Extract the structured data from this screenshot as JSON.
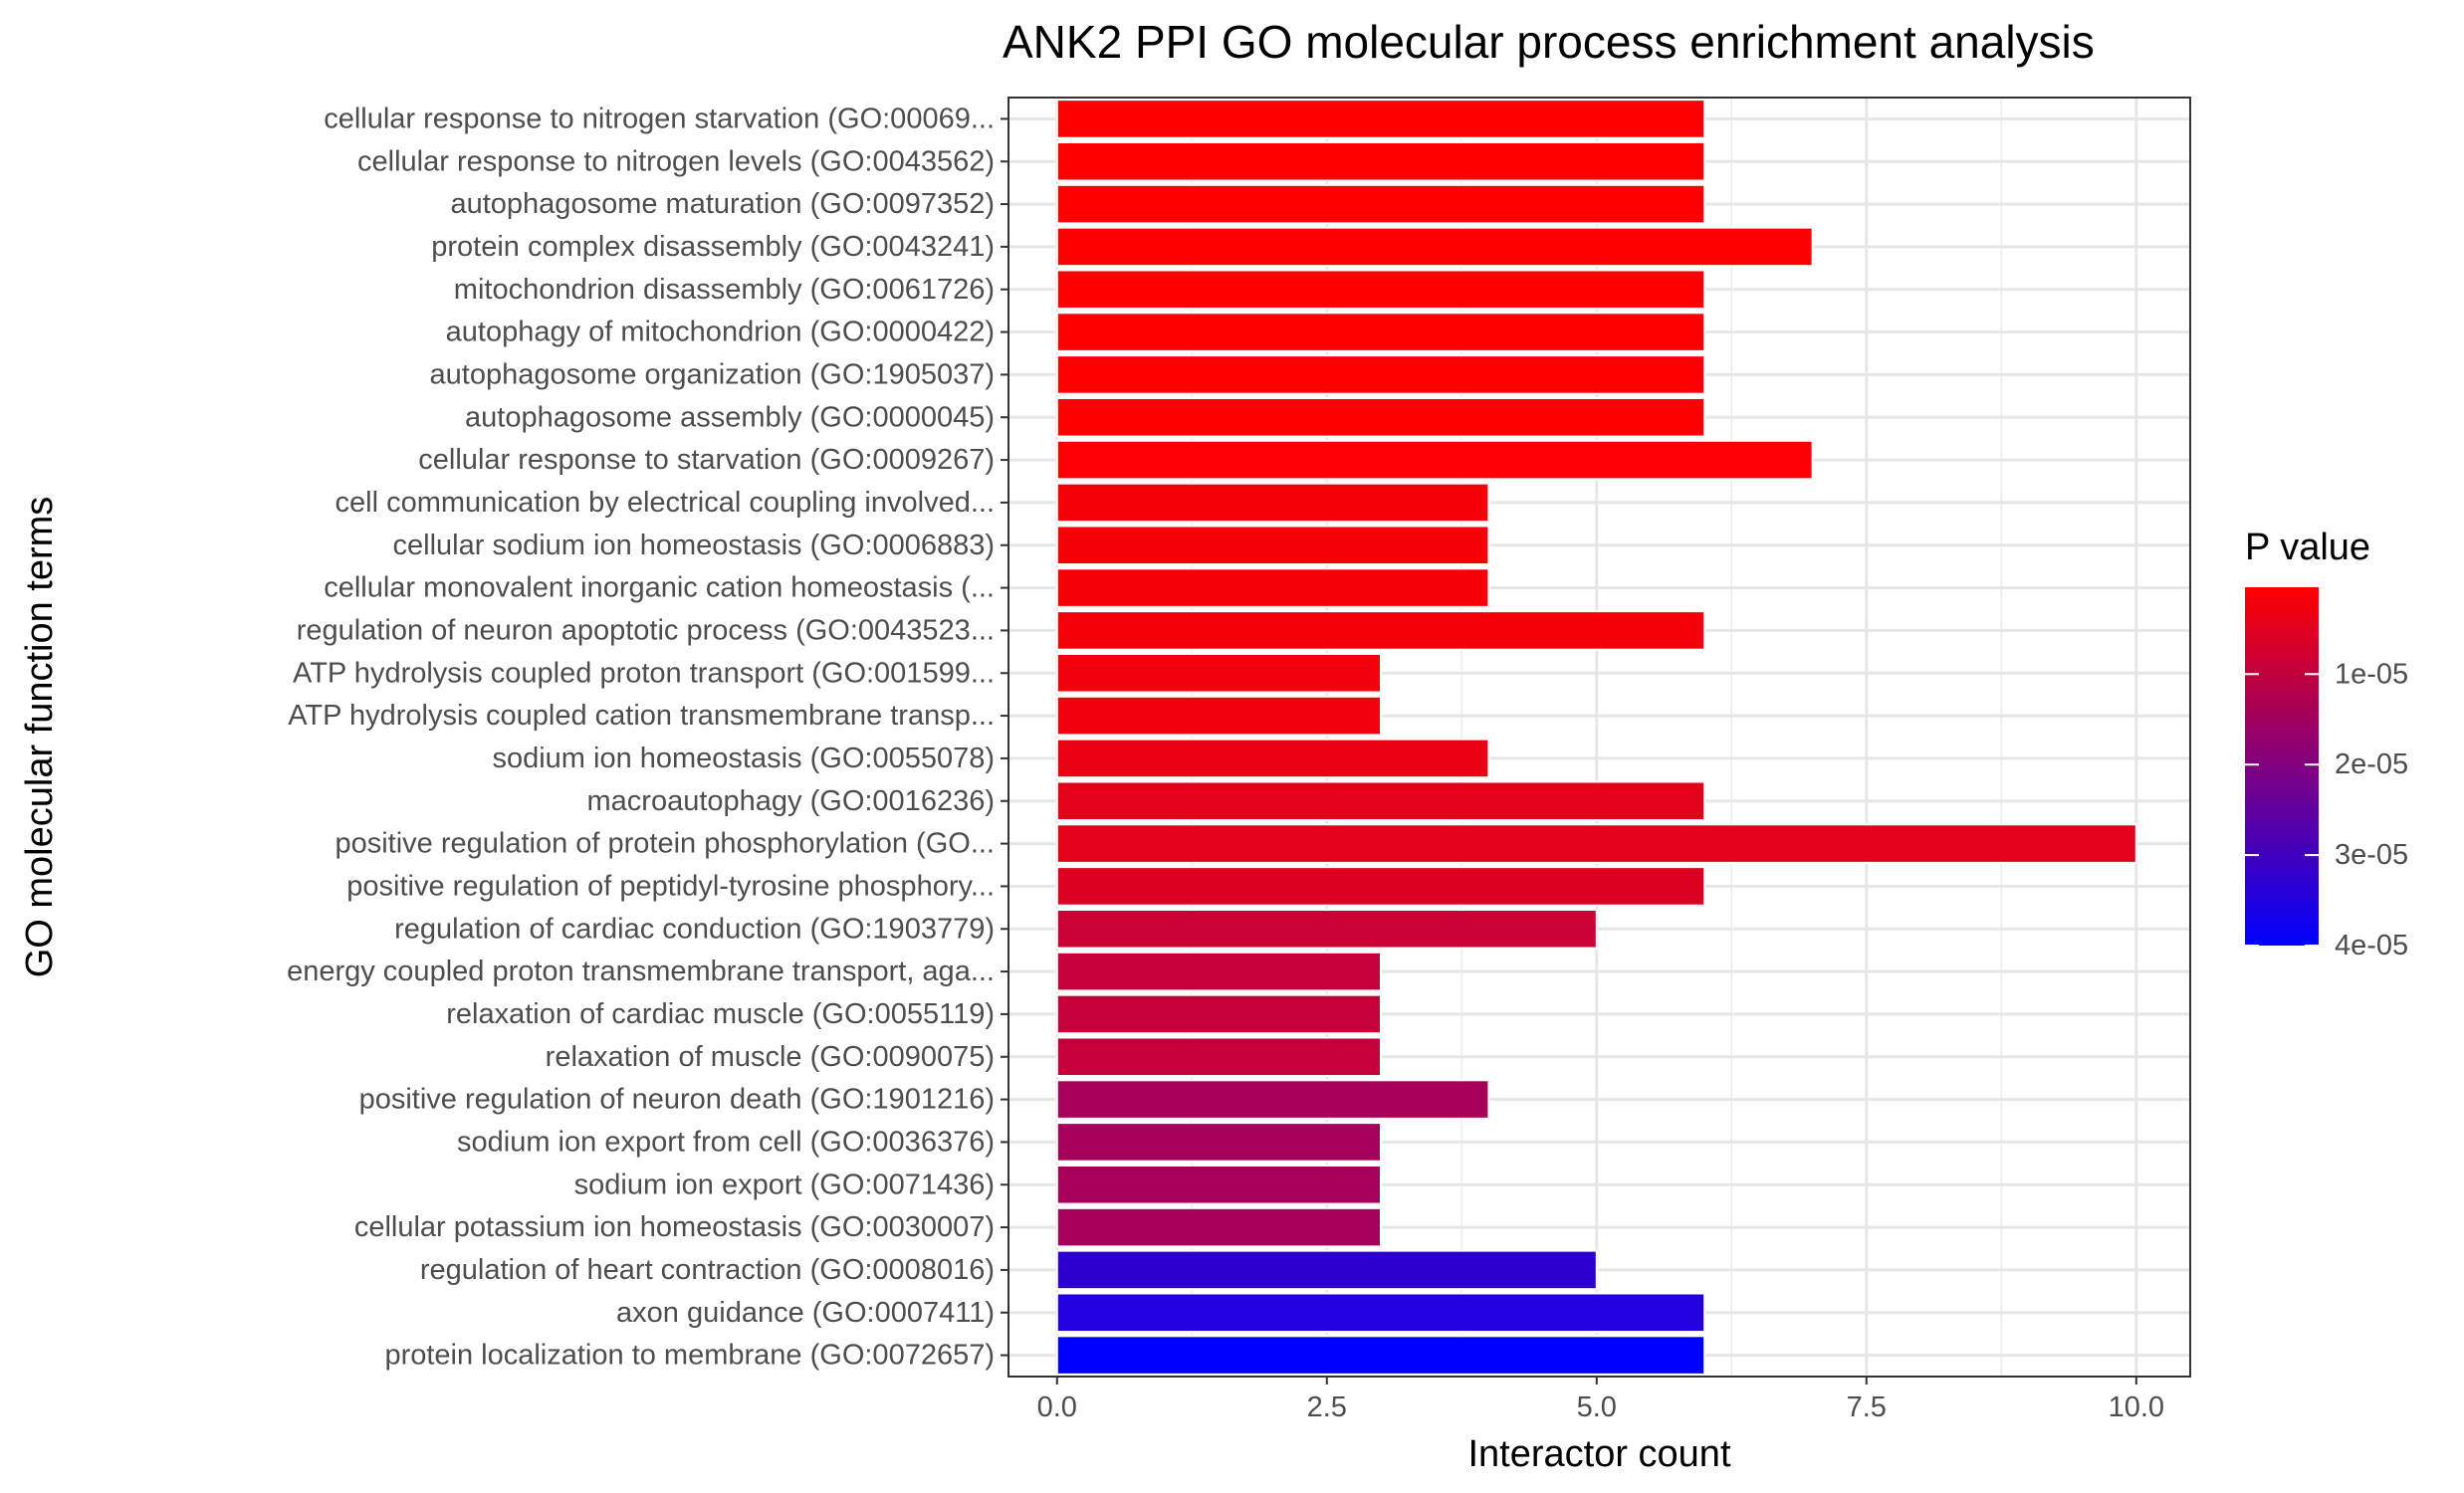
{
  "chart_data": {
    "type": "bar",
    "orientation": "horizontal",
    "title": "ANK2 PPI GO molecular process enrichment analysis",
    "xlabel": "Interactor count",
    "ylabel": "GO molecular function terms",
    "xlim": [
      -0.45,
      10.5
    ],
    "x_ticks": [
      0.0,
      2.5,
      5.0,
      7.5,
      10.0
    ],
    "x_tick_labels": [
      "0.0",
      "2.5",
      "5.0",
      "7.5",
      "10.0"
    ],
    "grid": true,
    "legend": {
      "title": "P value",
      "placement": "right",
      "type": "colorbar",
      "range": [
        4e-07,
        4e-05
      ],
      "color_low": "#ff0000",
      "color_high": "#0000ff",
      "ticks": [
        1e-05,
        2e-05,
        3e-05,
        4e-05
      ],
      "tick_labels": [
        "1e-05",
        "2e-05",
        "3e-05",
        "4e-05"
      ]
    },
    "categories": [
      "cellular response to nitrogen starvation (GO:00069...",
      "cellular response to nitrogen levels (GO:0043562)",
      "autophagosome maturation (GO:0097352)",
      "protein complex disassembly (GO:0043241)",
      "mitochondrion disassembly (GO:0061726)",
      "autophagy of mitochondrion (GO:0000422)",
      "autophagosome organization (GO:1905037)",
      "autophagosome assembly (GO:0000045)",
      "cellular response to starvation (GO:0009267)",
      "cell communication by electrical coupling involved...",
      "cellular sodium ion homeostasis (GO:0006883)",
      "cellular monovalent inorganic cation homeostasis (...",
      "regulation of neuron apoptotic process (GO:0043523...",
      "ATP hydrolysis coupled proton transport (GO:001599...",
      "ATP hydrolysis coupled cation transmembrane transp...",
      "sodium ion homeostasis (GO:0055078)",
      "macroautophagy (GO:0016236)",
      "positive regulation of protein phosphorylation (GO...",
      "positive regulation of peptidyl-tyrosine phosphory...",
      "regulation of cardiac conduction (GO:1903779)",
      "energy coupled proton transmembrane transport, aga...",
      "relaxation of cardiac muscle (GO:0055119)",
      "relaxation of muscle (GO:0090075)",
      "positive regulation of neuron death (GO:1901216)",
      "sodium ion export from cell (GO:0036376)",
      "sodium ion export (GO:0071436)",
      "cellular potassium ion homeostasis (GO:0030007)",
      "regulation of heart contraction (GO:0008016)",
      "axon guidance (GO:0007411)",
      "protein localization to membrane (GO:0072657)"
    ],
    "values": [
      6,
      6,
      6,
      7,
      6,
      6,
      6,
      6,
      7,
      4,
      4,
      4,
      6,
      3,
      3,
      4,
      6,
      10,
      6,
      5,
      3,
      3,
      3,
      4,
      3,
      3,
      3,
      5,
      6,
      6
    ],
    "p_values": [
      5e-07,
      5e-07,
      5e-07,
      6e-07,
      7e-07,
      7e-07,
      7e-07,
      7e-07,
      8e-07,
      1.5e-06,
      1.6e-06,
      1.6e-06,
      1.8e-06,
      2.4e-06,
      2.4e-06,
      3.5e-06,
      4.5e-06,
      4.5e-06,
      5.5e-06,
      8.5e-06,
      9.5e-06,
      9.5e-06,
      9.5e-06,
      1.4e-05,
      1.45e-05,
      1.45e-05,
      1.45e-05,
      3.3e-05,
      3.5e-05,
      4e-05
    ]
  }
}
